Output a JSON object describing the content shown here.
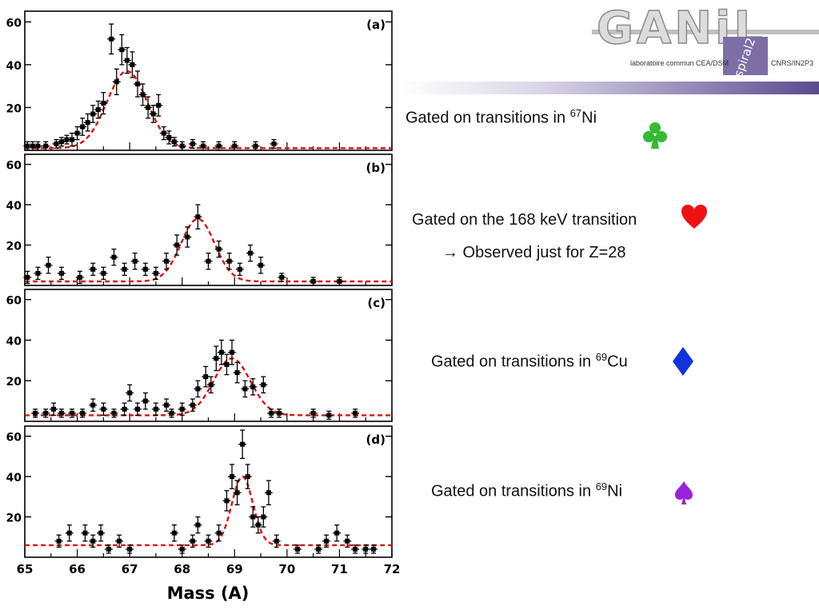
{
  "logo": {
    "main": "GANiL",
    "badge": "spiral2",
    "left_text": "laboratoire commun CEA/DSM",
    "right_text": "CNRS/IN2P3"
  },
  "captions": {
    "a": {
      "pre": "Gated on transitions in ",
      "sup": "67",
      "post": "Ni"
    },
    "b1": "Gated on the 168 keV transition",
    "b2": "→ Observed just for Z=28",
    "c": {
      "pre": "Gated on transitions in ",
      "sup": "69",
      "post": "Cu"
    },
    "d": {
      "pre": "Gated on transitions in ",
      "sup": "69",
      "post": "Ni"
    }
  },
  "icons": [
    {
      "name": "club-icon",
      "color": "#33bb33"
    },
    {
      "name": "heart-icon",
      "color": "#ee1111"
    },
    {
      "name": "diamond-icon",
      "color": "#1133dd"
    },
    {
      "name": "spade-icon",
      "color": "#9922dd"
    }
  ],
  "chart_data": [
    {
      "type": "scatter",
      "panel_label": "(a)",
      "xlim": [
        65,
        72
      ],
      "ylim": [
        0,
        65
      ],
      "yticks": [
        20,
        40,
        60
      ],
      "xlabel": "",
      "ylabel": "",
      "fit": {
        "style": "gaussian",
        "amplitude": 36,
        "center": 66.95,
        "sigma": 0.38,
        "baseline": 1,
        "color": "#dd1111"
      },
      "points": [
        {
          "x": 65.05,
          "y": 2,
          "e": 2
        },
        {
          "x": 65.15,
          "y": 2,
          "e": 2
        },
        {
          "x": 65.25,
          "y": 2,
          "e": 2
        },
        {
          "x": 65.4,
          "y": 2,
          "e": 2
        },
        {
          "x": 65.6,
          "y": 3,
          "e": 2
        },
        {
          "x": 65.7,
          "y": 4,
          "e": 2
        },
        {
          "x": 65.8,
          "y": 5,
          "e": 2
        },
        {
          "x": 65.9,
          "y": 5,
          "e": 3
        },
        {
          "x": 66.0,
          "y": 8,
          "e": 3
        },
        {
          "x": 66.1,
          "y": 11,
          "e": 4
        },
        {
          "x": 66.2,
          "y": 13,
          "e": 4
        },
        {
          "x": 66.3,
          "y": 17,
          "e": 4
        },
        {
          "x": 66.4,
          "y": 19,
          "e": 4
        },
        {
          "x": 66.5,
          "y": 22,
          "e": 5
        },
        {
          "x": 66.65,
          "y": 52,
          "e": 7
        },
        {
          "x": 66.75,
          "y": 32,
          "e": 6
        },
        {
          "x": 66.85,
          "y": 47,
          "e": 7
        },
        {
          "x": 66.95,
          "y": 42,
          "e": 6
        },
        {
          "x": 67.05,
          "y": 40,
          "e": 6
        },
        {
          "x": 67.15,
          "y": 31,
          "e": 6
        },
        {
          "x": 67.25,
          "y": 26,
          "e": 5
        },
        {
          "x": 67.35,
          "y": 20,
          "e": 5
        },
        {
          "x": 67.45,
          "y": 17,
          "e": 4
        },
        {
          "x": 67.55,
          "y": 21,
          "e": 5
        },
        {
          "x": 67.65,
          "y": 8,
          "e": 3
        },
        {
          "x": 67.75,
          "y": 6,
          "e": 3
        },
        {
          "x": 67.85,
          "y": 4,
          "e": 2
        },
        {
          "x": 68.0,
          "y": 2,
          "e": 2
        },
        {
          "x": 68.2,
          "y": 3,
          "e": 2
        },
        {
          "x": 68.4,
          "y": 2,
          "e": 2
        },
        {
          "x": 68.7,
          "y": 2,
          "e": 2
        },
        {
          "x": 69.0,
          "y": 2,
          "e": 2
        },
        {
          "x": 69.4,
          "y": 2,
          "e": 2
        },
        {
          "x": 69.75,
          "y": 3,
          "e": 2
        }
      ]
    },
    {
      "type": "scatter",
      "panel_label": "(b)",
      "xlim": [
        65,
        72
      ],
      "ylim": [
        0,
        65
      ],
      "yticks": [
        20,
        40,
        60
      ],
      "xlabel": "",
      "ylabel": "",
      "fit": {
        "style": "gaussian",
        "amplitude": 31,
        "center": 68.3,
        "sigma": 0.32,
        "baseline": 2,
        "color": "#dd1111"
      },
      "points": [
        {
          "x": 65.05,
          "y": 4,
          "e": 3
        },
        {
          "x": 65.25,
          "y": 6,
          "e": 3
        },
        {
          "x": 65.45,
          "y": 10,
          "e": 4
        },
        {
          "x": 65.7,
          "y": 6,
          "e": 3
        },
        {
          "x": 66.05,
          "y": 4,
          "e": 3
        },
        {
          "x": 66.3,
          "y": 8,
          "e": 3
        },
        {
          "x": 66.5,
          "y": 6,
          "e": 3
        },
        {
          "x": 66.7,
          "y": 14,
          "e": 4
        },
        {
          "x": 66.9,
          "y": 8,
          "e": 3
        },
        {
          "x": 67.1,
          "y": 12,
          "e": 4
        },
        {
          "x": 67.3,
          "y": 8,
          "e": 3
        },
        {
          "x": 67.5,
          "y": 6,
          "e": 3
        },
        {
          "x": 67.7,
          "y": 12,
          "e": 4
        },
        {
          "x": 67.9,
          "y": 20,
          "e": 5
        },
        {
          "x": 68.1,
          "y": 24,
          "e": 5
        },
        {
          "x": 68.3,
          "y": 34,
          "e": 6
        },
        {
          "x": 68.5,
          "y": 12,
          "e": 4
        },
        {
          "x": 68.7,
          "y": 18,
          "e": 4
        },
        {
          "x": 68.9,
          "y": 12,
          "e": 4
        },
        {
          "x": 69.1,
          "y": 8,
          "e": 3
        },
        {
          "x": 69.3,
          "y": 16,
          "e": 4
        },
        {
          "x": 69.5,
          "y": 10,
          "e": 4
        },
        {
          "x": 69.9,
          "y": 4,
          "e": 2
        },
        {
          "x": 70.5,
          "y": 2,
          "e": 2
        },
        {
          "x": 71.0,
          "y": 2,
          "e": 2
        }
      ]
    },
    {
      "type": "scatter",
      "panel_label": "(c)",
      "xlim": [
        65,
        72
      ],
      "ylim": [
        0,
        65
      ],
      "yticks": [
        20,
        40,
        60
      ],
      "xlabel": "",
      "ylabel": "",
      "fit": {
        "style": "gaussian",
        "amplitude": 28,
        "center": 68.95,
        "sigma": 0.35,
        "baseline": 3,
        "color": "#dd1111"
      },
      "points": [
        {
          "x": 65.2,
          "y": 4,
          "e": 2
        },
        {
          "x": 65.4,
          "y": 4,
          "e": 2
        },
        {
          "x": 65.55,
          "y": 6,
          "e": 3
        },
        {
          "x": 65.7,
          "y": 4,
          "e": 2
        },
        {
          "x": 65.9,
          "y": 4,
          "e": 2
        },
        {
          "x": 66.1,
          "y": 4,
          "e": 2
        },
        {
          "x": 66.3,
          "y": 8,
          "e": 3
        },
        {
          "x": 66.5,
          "y": 6,
          "e": 3
        },
        {
          "x": 66.7,
          "y": 4,
          "e": 2
        },
        {
          "x": 66.9,
          "y": 6,
          "e": 3
        },
        {
          "x": 67.0,
          "y": 14,
          "e": 4
        },
        {
          "x": 67.15,
          "y": 6,
          "e": 3
        },
        {
          "x": 67.3,
          "y": 10,
          "e": 4
        },
        {
          "x": 67.5,
          "y": 6,
          "e": 3
        },
        {
          "x": 67.7,
          "y": 8,
          "e": 3
        },
        {
          "x": 67.8,
          "y": 4,
          "e": 2
        },
        {
          "x": 68.0,
          "y": 6,
          "e": 3
        },
        {
          "x": 68.2,
          "y": 8,
          "e": 3
        },
        {
          "x": 68.3,
          "y": 16,
          "e": 4
        },
        {
          "x": 68.45,
          "y": 22,
          "e": 5
        },
        {
          "x": 68.55,
          "y": 18,
          "e": 4
        },
        {
          "x": 68.65,
          "y": 31,
          "e": 6
        },
        {
          "x": 68.75,
          "y": 34,
          "e": 6
        },
        {
          "x": 68.85,
          "y": 28,
          "e": 5
        },
        {
          "x": 68.95,
          "y": 34,
          "e": 6
        },
        {
          "x": 69.05,
          "y": 24,
          "e": 5
        },
        {
          "x": 69.2,
          "y": 16,
          "e": 4
        },
        {
          "x": 69.35,
          "y": 17,
          "e": 4
        },
        {
          "x": 69.55,
          "y": 18,
          "e": 4
        },
        {
          "x": 69.7,
          "y": 4,
          "e": 2
        },
        {
          "x": 69.85,
          "y": 4,
          "e": 2
        },
        {
          "x": 70.5,
          "y": 4,
          "e": 2
        },
        {
          "x": 70.8,
          "y": 3,
          "e": 2
        },
        {
          "x": 71.3,
          "y": 4,
          "e": 2
        }
      ]
    },
    {
      "type": "scatter",
      "panel_label": "(d)",
      "xlim": [
        65,
        72
      ],
      "ylim": [
        0,
        65
      ],
      "yticks": [
        20,
        40,
        60
      ],
      "xticks": [
        65,
        66,
        67,
        68,
        69,
        70,
        71,
        72
      ],
      "xlabel": "Mass (A)",
      "ylabel": "",
      "fit": {
        "style": "gaussian",
        "amplitude": 34,
        "center": 69.15,
        "sigma": 0.2,
        "baseline": 6,
        "color": "#dd1111"
      },
      "points": [
        {
          "x": 65.65,
          "y": 8,
          "e": 3
        },
        {
          "x": 65.85,
          "y": 12,
          "e": 4
        },
        {
          "x": 66.15,
          "y": 12,
          "e": 4
        },
        {
          "x": 66.3,
          "y": 8,
          "e": 3
        },
        {
          "x": 66.45,
          "y": 12,
          "e": 4
        },
        {
          "x": 66.6,
          "y": 4,
          "e": 2
        },
        {
          "x": 66.8,
          "y": 8,
          "e": 3
        },
        {
          "x": 67.0,
          "y": 4,
          "e": 2
        },
        {
          "x": 67.85,
          "y": 12,
          "e": 4
        },
        {
          "x": 68.0,
          "y": 4,
          "e": 2
        },
        {
          "x": 68.2,
          "y": 8,
          "e": 3
        },
        {
          "x": 68.3,
          "y": 16,
          "e": 4
        },
        {
          "x": 68.5,
          "y": 8,
          "e": 3
        },
        {
          "x": 68.7,
          "y": 12,
          "e": 4
        },
        {
          "x": 68.85,
          "y": 28,
          "e": 5
        },
        {
          "x": 68.95,
          "y": 40,
          "e": 6
        },
        {
          "x": 69.05,
          "y": 32,
          "e": 6
        },
        {
          "x": 69.15,
          "y": 56,
          "e": 7
        },
        {
          "x": 69.25,
          "y": 40,
          "e": 6
        },
        {
          "x": 69.35,
          "y": 20,
          "e": 5
        },
        {
          "x": 69.45,
          "y": 16,
          "e": 4
        },
        {
          "x": 69.55,
          "y": 20,
          "e": 5
        },
        {
          "x": 69.65,
          "y": 32,
          "e": 6
        },
        {
          "x": 69.8,
          "y": 8,
          "e": 3
        },
        {
          "x": 70.2,
          "y": 4,
          "e": 2
        },
        {
          "x": 70.6,
          "y": 4,
          "e": 2
        },
        {
          "x": 70.75,
          "y": 8,
          "e": 3
        },
        {
          "x": 70.95,
          "y": 12,
          "e": 4
        },
        {
          "x": 71.15,
          "y": 8,
          "e": 3
        },
        {
          "x": 71.3,
          "y": 4,
          "e": 2
        },
        {
          "x": 71.5,
          "y": 4,
          "e": 2
        },
        {
          "x": 71.65,
          "y": 4,
          "e": 2
        }
      ]
    }
  ]
}
